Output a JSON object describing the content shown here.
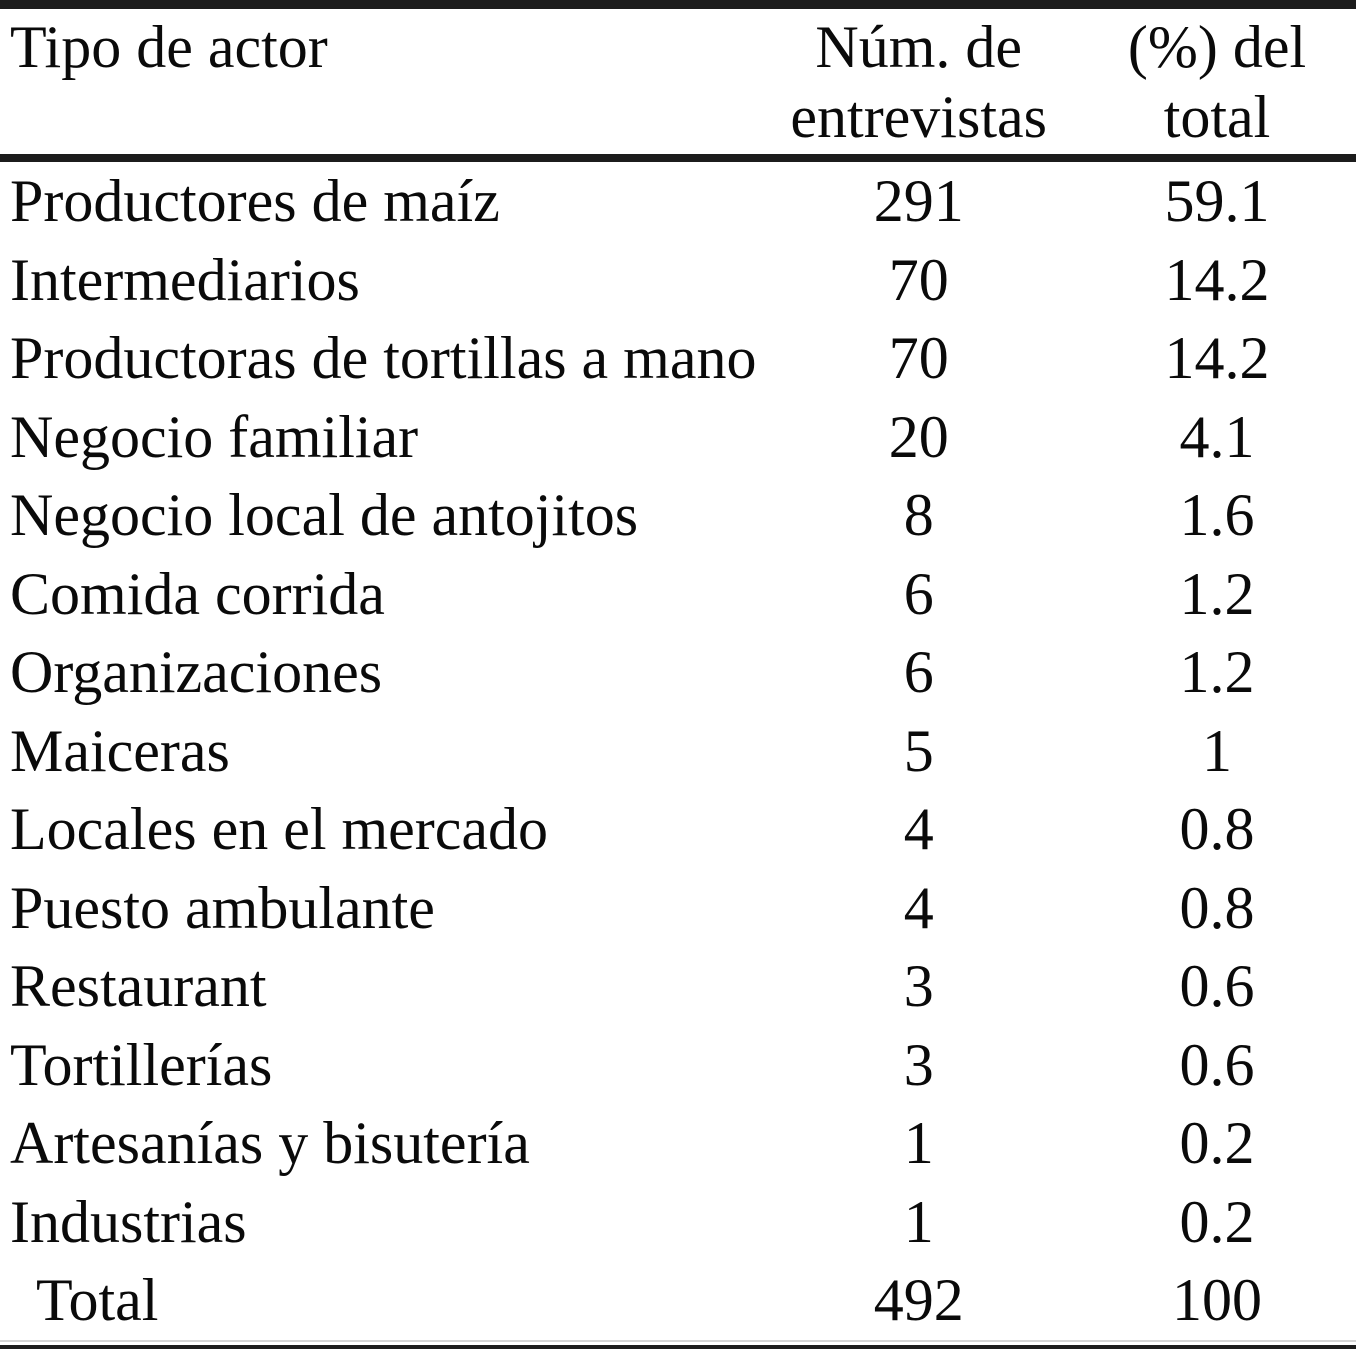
{
  "table": {
    "columns": [
      {
        "label": "Tipo de actor"
      },
      {
        "label": "Núm. de\nentrevistas"
      },
      {
        "label": "(%) del\ntotal"
      }
    ],
    "rows": [
      {
        "actor": "Productores de maíz",
        "count": "291",
        "percent": "59.1"
      },
      {
        "actor": "Intermediarios",
        "count": "70",
        "percent": "14.2"
      },
      {
        "actor": "Productoras de tortillas a mano",
        "count": "70",
        "percent": "14.2"
      },
      {
        "actor": "Negocio familiar",
        "count": "20",
        "percent": "4.1"
      },
      {
        "actor": "Negocio local de antojitos",
        "count": "8",
        "percent": "1.6"
      },
      {
        "actor": "Comida corrida",
        "count": "6",
        "percent": "1.2"
      },
      {
        "actor": "Organizaciones",
        "count": "6",
        "percent": "1.2"
      },
      {
        "actor": "Maiceras",
        "count": "5",
        "percent": "1"
      },
      {
        "actor": "Locales en el mercado",
        "count": "4",
        "percent": "0.8"
      },
      {
        "actor": "Puesto ambulante",
        "count": "4",
        "percent": "0.8"
      },
      {
        "actor": "Restaurant",
        "count": "3",
        "percent": "0.6"
      },
      {
        "actor": "Tortillerías",
        "count": "3",
        "percent": "0.6"
      },
      {
        "actor": "Artesanías y bisutería",
        "count": "1",
        "percent": "0.2"
      },
      {
        "actor": "Industrias",
        "count": "1",
        "percent": "0.2"
      }
    ],
    "total": {
      "label": "Total",
      "count": "492",
      "percent": "100"
    }
  },
  "colors": {
    "background": "#ffffff",
    "text": "#0a0a0a",
    "rule": "#1c1c1c",
    "faint_rule": "#d4d4d4"
  }
}
